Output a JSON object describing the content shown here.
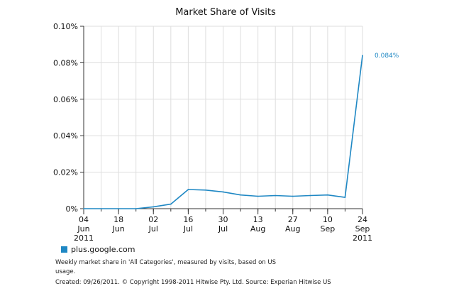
{
  "chart_data": {
    "type": "line",
    "title": "Market Share of Visits",
    "xlabel": "",
    "ylabel": "",
    "ylim": [
      0,
      0.1
    ],
    "y_ticks": [
      {
        "value": 0.0,
        "label": "0%"
      },
      {
        "value": 0.02,
        "label": "0.02%"
      },
      {
        "value": 0.04,
        "label": "0.04%"
      },
      {
        "value": 0.06,
        "label": "0.06%"
      },
      {
        "value": 0.08,
        "label": "0.08%"
      },
      {
        "value": 0.1,
        "label": "0.10%"
      }
    ],
    "x": [
      "2011-06-04",
      "2011-06-11",
      "2011-06-18",
      "2011-06-25",
      "2011-07-02",
      "2011-07-09",
      "2011-07-16",
      "2011-07-23",
      "2011-07-30",
      "2011-08-06",
      "2011-08-13",
      "2011-08-20",
      "2011-08-27",
      "2011-09-03",
      "2011-09-10",
      "2011-09-17",
      "2011-09-24"
    ],
    "x_tick_labels": [
      {
        "index": 0,
        "lines": [
          "04",
          "Jun",
          "2011"
        ]
      },
      {
        "index": 2,
        "lines": [
          "18",
          "Jun",
          ""
        ]
      },
      {
        "index": 4,
        "lines": [
          "02",
          "Jul",
          ""
        ]
      },
      {
        "index": 6,
        "lines": [
          "16",
          "Jul",
          ""
        ]
      },
      {
        "index": 8,
        "lines": [
          "30",
          "Jul",
          ""
        ]
      },
      {
        "index": 10,
        "lines": [
          "13",
          "Aug",
          ""
        ]
      },
      {
        "index": 12,
        "lines": [
          "27",
          "Aug",
          ""
        ]
      },
      {
        "index": 14,
        "lines": [
          "10",
          "Sep",
          ""
        ]
      },
      {
        "index": 16,
        "lines": [
          "24",
          "Sep",
          "2011"
        ]
      }
    ],
    "series": [
      {
        "name": "plus.google.com",
        "color": "#1f88c4",
        "values": [
          0,
          0,
          0,
          0,
          0.001,
          0.0025,
          0.0105,
          0.0102,
          0.0092,
          0.0075,
          0.0068,
          0.0072,
          0.0068,
          0.0072,
          0.0075,
          0.0062,
          0.084
        ]
      }
    ],
    "end_label": {
      "series": 0,
      "text": "0.084%"
    },
    "grid": true,
    "legend_position": "bottom-left"
  },
  "footer": {
    "line1": "Weekly market share in 'All Categories', measured by visits, based on US usage.",
    "line3": "Created: 09/26/2011. © Copyright 1998-2011 Hitwise Pty. Ltd.    Source: Experian Hitwise US"
  }
}
